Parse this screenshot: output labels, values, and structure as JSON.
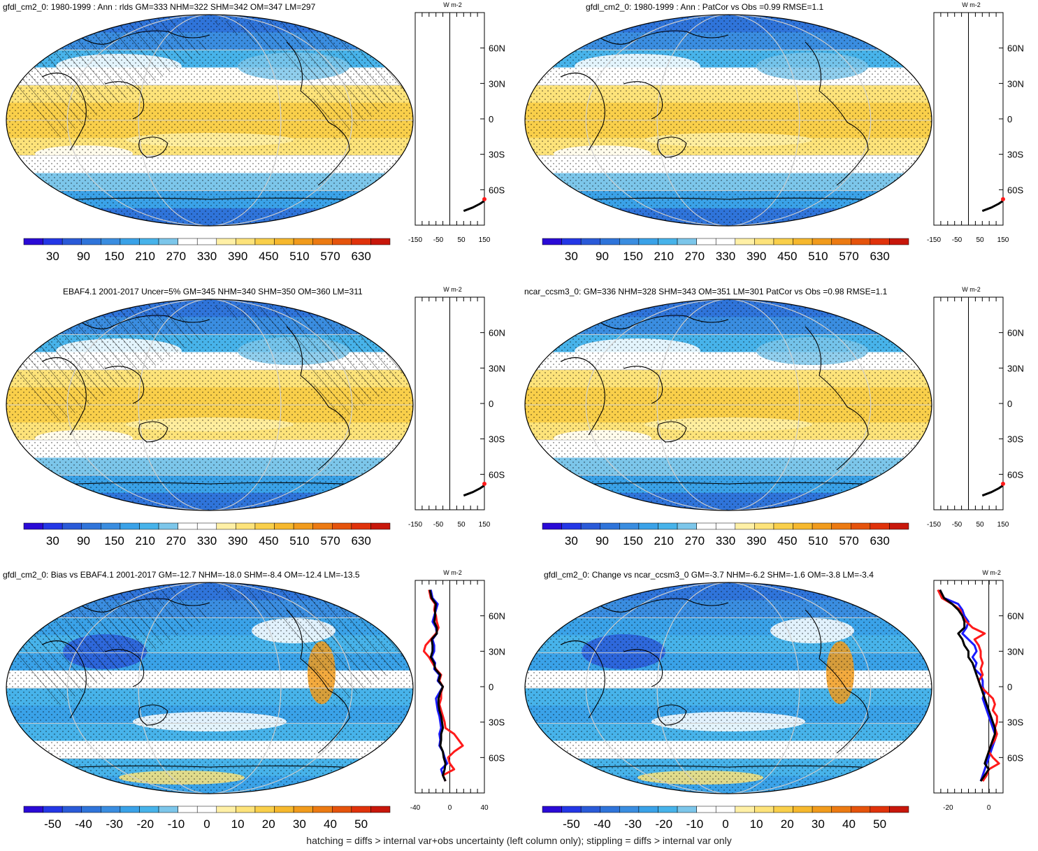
{
  "palette": {
    "abs": [
      "#2a0ad6",
      "#2437e6",
      "#2a5ad8",
      "#2f74da",
      "#3a8de0",
      "#3aa2e8",
      "#47b3ea",
      "#7cc6ea",
      "#ffffff",
      "#ffffff",
      "#fff0a6",
      "#fde37a",
      "#f9cf4a",
      "#f6b82d",
      "#f19b1c",
      "#ec7a12",
      "#e5530c",
      "#e0320b",
      "#c8170b"
    ],
    "diff": [
      "#2a0ad6",
      "#2437e6",
      "#2a5ad8",
      "#2f74da",
      "#3a8de0",
      "#3aa2e8",
      "#47b3ea",
      "#7cc6ea",
      "#ffffff",
      "#ffffff",
      "#fff0a6",
      "#fde37a",
      "#f9cf4a",
      "#f6b82d",
      "#f19b1c",
      "#ec7a12",
      "#e5530c",
      "#e0320b",
      "#c8170b"
    ],
    "land": "#000000",
    "line_model": "#000000",
    "line_obs": "#1a1aff",
    "line_other": "#ff1a1a"
  },
  "panels": [
    {
      "title": "gfdl_cm2_0: 1980-1999 : Ann : rlds GM=333 NHM=322 SHM=342 OM=347 LM=297",
      "map_kind": "abs",
      "hatched": true,
      "colorbar_labels": [
        "30",
        "90",
        "150",
        "210",
        "270",
        "330",
        "390",
        "450",
        "510",
        "570",
        "630"
      ],
      "profile": {
        "xticks": [
          "-150",
          "-50",
          "50",
          "150"
        ],
        "xlim": [
          -150,
          150
        ],
        "unit": "W m-2",
        "ylabels": [
          "60N",
          "30N",
          "0",
          "30S",
          "60S"
        ]
      }
    },
    {
      "title": "gfdl_cm2_0: 1980-1999 : Ann : PatCor vs Obs =0.99 RMSE=1.1",
      "map_kind": "abs",
      "hatched": false,
      "colorbar_labels": [
        "30",
        "90",
        "150",
        "210",
        "270",
        "330",
        "390",
        "450",
        "510",
        "570",
        "630"
      ],
      "profile": {
        "xticks": [
          "-150",
          "-50",
          "50",
          "150"
        ],
        "xlim": [
          -150,
          150
        ],
        "unit": "W m-2",
        "ylabels": [
          "60N",
          "30N",
          "0",
          "30S",
          "60S"
        ]
      }
    },
    {
      "title": "EBAF4.1 2001-2017 Uncer=5% GM=345 NHM=340 SHM=350 OM=360 LM=311",
      "map_kind": "abs",
      "hatched": true,
      "colorbar_labels": [
        "30",
        "90",
        "150",
        "210",
        "270",
        "330",
        "390",
        "450",
        "510",
        "570",
        "630"
      ],
      "profile": {
        "xticks": [
          "-150",
          "-50",
          "50",
          "150"
        ],
        "xlim": [
          -150,
          150
        ],
        "unit": "W m-2",
        "ylabels": [
          "60N",
          "30N",
          "0",
          "30S",
          "60S"
        ]
      }
    },
    {
      "title": "ncar_ccsm3_0: GM=336 NHM=328 SHM=343 OM=351 LM=301 PatCor vs Obs =0.98 RMSE=1.1",
      "map_kind": "abs",
      "hatched": false,
      "colorbar_labels": [
        "30",
        "90",
        "150",
        "210",
        "270",
        "330",
        "390",
        "450",
        "510",
        "570",
        "630"
      ],
      "profile": {
        "xticks": [
          "-150",
          "-50",
          "50",
          "150"
        ],
        "xlim": [
          -150,
          150
        ],
        "unit": "W m-2",
        "ylabels": [
          "60N",
          "30N",
          "0",
          "30S",
          "60S"
        ]
      }
    },
    {
      "title": "gfdl_cm2_0: Bias vs EBAF4.1 2001-2017 GM=-12.7 NHM=-18.0 SHM=-8.4 OM=-12.4 LM=-13.5",
      "map_kind": "diff",
      "hatched": true,
      "colorbar_labels": [
        "-50",
        "-40",
        "-30",
        "-20",
        "-10",
        "0",
        "10",
        "20",
        "30",
        "40",
        "50"
      ],
      "profile": {
        "xticks": [
          "-40",
          "0",
          "40"
        ],
        "xlim": [
          -40,
          40
        ],
        "unit": "W m-2",
        "ylabels": [
          "60N",
          "30N",
          "0",
          "30S",
          "60S"
        ]
      }
    },
    {
      "title": "gfdl_cm2_0: Change vs ncar_ccsm3_0 GM=-3.7 NHM=-6.2 SHM=-1.6 OM=-3.8 LM=-3.4",
      "map_kind": "diff",
      "hatched": false,
      "colorbar_labels": [
        "-50",
        "-40",
        "-30",
        "-20",
        "-10",
        "0",
        "10",
        "20",
        "30",
        "40",
        "50"
      ],
      "profile": {
        "xticks": [
          "-20",
          "0"
        ],
        "xlim": [
          -27,
          7
        ],
        "unit": "W m-2",
        "ylabels": [
          "60N",
          "30N",
          "0",
          "30S",
          "60S"
        ]
      }
    }
  ],
  "chart_data": [
    {
      "type": "line",
      "title": "gfdl_cm2_0: 1980-1999 : Ann : rlds GM=333 NHM=322 SHM=342 OM=347 LM=297",
      "xlabel": "W m-2",
      "x_range": [
        -150,
        150
      ],
      "latitudes": [
        -78,
        -75,
        -72,
        -70,
        -68
      ],
      "series": [
        {
          "values": [
            60,
            100,
            130,
            145,
            150
          ]
        }
      ]
    },
    {
      "type": "line",
      "title": "gfdl_cm2_0: 1980-1999 : Ann : PatCor vs Obs =0.99 RMSE=1.1",
      "xlabel": "W m-2",
      "x_range": [
        -150,
        150
      ],
      "latitudes": [
        -78,
        -75,
        -72,
        -70,
        -68
      ],
      "series": [
        {
          "values": [
            60,
            100,
            130,
            145,
            150
          ]
        }
      ]
    },
    {
      "type": "line",
      "title": "EBAF4.1 2001-2017 Uncer=5% GM=345 NHM=340 SHM=350 OM=360 LM=311",
      "xlabel": "W m-2",
      "x_range": [
        -150,
        150
      ],
      "latitudes": [
        -78,
        -75,
        -72,
        -70,
        -68
      ],
      "series": [
        {
          "values": [
            60,
            100,
            130,
            145,
            150
          ]
        }
      ]
    },
    {
      "type": "line",
      "title": "ncar_ccsm3_0: GM=336 NHM=328 SHM=343 OM=351 LM=301 PatCor vs Obs =0.98 RMSE=1.1",
      "xlabel": "W m-2",
      "x_range": [
        -150,
        150
      ],
      "latitudes": [
        -78,
        -75,
        -72,
        -70,
        -68
      ],
      "series": [
        {
          "values": [
            60,
            100,
            130,
            145,
            150
          ]
        }
      ]
    },
    {
      "type": "line",
      "title": "gfdl_cm2_0: Bias vs EBAF4.1 2001-2017 GM=-12.7 NHM=-18.0 SHM=-8.4 OM=-12.4 LM=-13.5",
      "xlabel": "W m-2",
      "x_range": [
        -40,
        40
      ],
      "latitudes": [
        82,
        75,
        70,
        65,
        60,
        55,
        50,
        45,
        40,
        35,
        30,
        25,
        20,
        15,
        10,
        5,
        0,
        -5,
        -10,
        -15,
        -20,
        -25,
        -30,
        -35,
        -40,
        -45,
        -50,
        -55,
        -60,
        -65,
        -70,
        -75,
        -80
      ],
      "series": [
        {
          "values": [
            -22,
            -20,
            -14,
            -16,
            -18,
            -20,
            -16,
            -15,
            -20,
            -18,
            -18,
            -21,
            -17,
            -18,
            -12,
            -14,
            -8,
            -12,
            -16,
            -15,
            -14,
            -12,
            -11,
            -10,
            -12,
            -11,
            -12,
            -8,
            -6,
            -3,
            -10,
            -8,
            -5
          ]
        },
        {
          "values": [
            -24,
            -22,
            -17,
            -18,
            -16,
            -15,
            -13,
            -16,
            -22,
            -28,
            -30,
            -24,
            -20,
            -16,
            -10,
            -12,
            -8,
            -10,
            -10,
            -12,
            -10,
            -8,
            -6,
            -5,
            5,
            10,
            15,
            5,
            -2,
            0,
            5,
            -8,
            -5
          ]
        },
        {
          "values": [
            -23,
            -21,
            -16,
            -17,
            -17,
            -18,
            -15,
            -15,
            -21,
            -20,
            -20,
            -22,
            -18,
            -17,
            -11,
            -13,
            -8,
            -11,
            -13,
            -13,
            -12,
            -10,
            -9,
            -8,
            -10,
            -10,
            -11,
            -8,
            -7,
            -5,
            -6,
            -8,
            -5
          ]
        }
      ]
    },
    {
      "type": "line",
      "title": "gfdl_cm2_0: Change vs ncar_ccsm3_0 GM=-3.7 NHM=-6.2 SHM=-1.6 OM=-3.8 LM=-3.4",
      "xlabel": "W m-2",
      "x_range": [
        -27,
        7
      ],
      "latitudes": [
        82,
        75,
        70,
        65,
        60,
        55,
        50,
        45,
        40,
        35,
        30,
        25,
        20,
        15,
        10,
        5,
        0,
        -5,
        -10,
        -15,
        -20,
        -25,
        -30,
        -35,
        -40,
        -45,
        -50,
        -55,
        -60,
        -65,
        -70,
        -75,
        -80
      ],
      "series": [
        {
          "values": [
            -24,
            -22,
            -15,
            -13,
            -12,
            -10,
            -11,
            -13,
            -10,
            -7,
            -6,
            -8,
            -6,
            -7,
            -4,
            -3,
            -3,
            -2,
            -3,
            -2,
            -1,
            0,
            1,
            2,
            3,
            3,
            2,
            1,
            0,
            -1,
            -2,
            -3,
            -4
          ]
        },
        {
          "values": [
            -25,
            -23,
            -18,
            -14,
            -13,
            -11,
            -8,
            -2,
            -7,
            -5,
            -4,
            -4,
            -3,
            -4,
            -3,
            -5,
            -4,
            -1,
            2,
            3,
            2,
            4,
            4,
            3,
            4,
            3,
            1,
            0,
            2,
            5,
            0,
            -1,
            -3
          ]
        },
        {
          "values": [
            -24,
            -22,
            -18,
            -15,
            -13,
            -12,
            -12,
            -15,
            -13,
            -12,
            -10,
            -10,
            -8,
            -7,
            -6,
            -5,
            -4,
            -3,
            -2,
            -1,
            0,
            1,
            2,
            3,
            3,
            2,
            1,
            0,
            -1,
            -2,
            0,
            -2,
            -4
          ]
        }
      ]
    }
  ],
  "footer": "hatching = diffs > internal var+obs uncertainty (left column only); stippling = diffs > internal var only"
}
